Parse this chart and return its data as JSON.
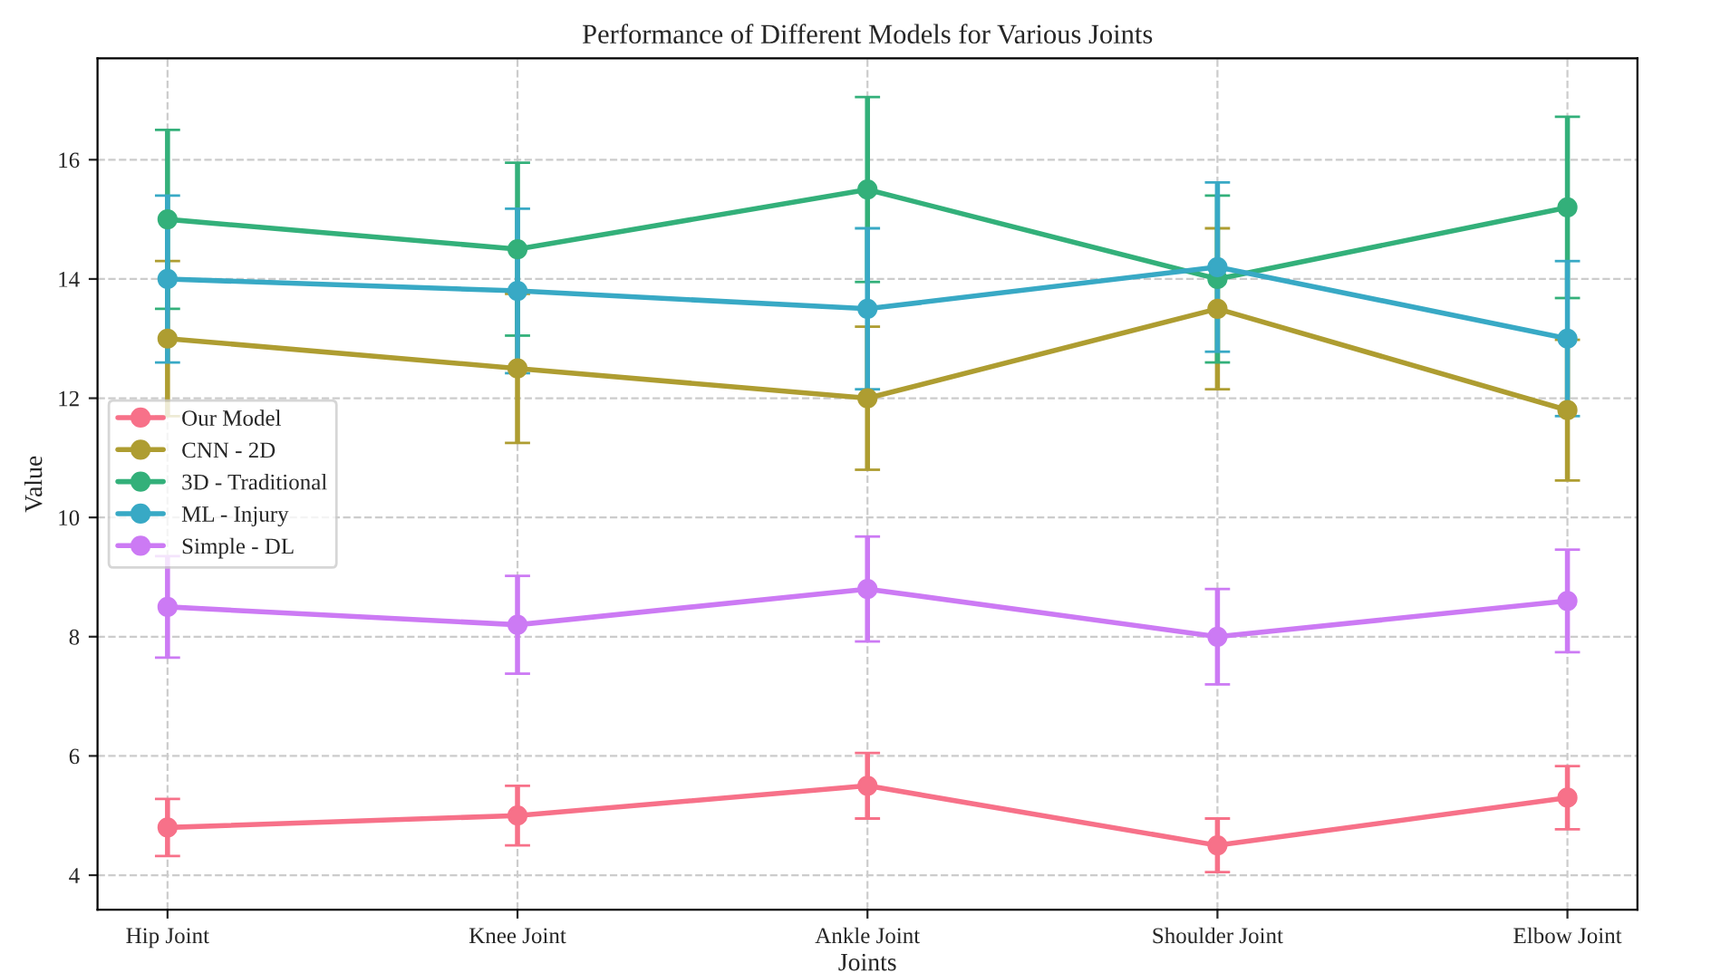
{
  "chart_data": {
    "type": "line",
    "title": "Performance of Different Models for Various Joints",
    "xlabel": "Joints",
    "ylabel": "Value",
    "categories": [
      "Hip Joint",
      "Knee Joint",
      "Ankle Joint",
      "Shoulder Joint",
      "Elbow Joint"
    ],
    "series": [
      {
        "name": "Our Model",
        "color": "#f77189",
        "values": [
          4.8,
          5.0,
          5.5,
          4.5,
          5.3
        ],
        "errors": [
          0.48,
          0.5,
          0.55,
          0.45,
          0.53
        ]
      },
      {
        "name": "CNN - 2D",
        "color": "#ae9d31",
        "values": [
          13.0,
          12.5,
          12.0,
          13.5,
          11.8
        ],
        "errors": [
          1.3,
          1.25,
          1.2,
          1.35,
          1.18
        ]
      },
      {
        "name": "3D - Traditional",
        "color": "#33b07a",
        "values": [
          15.0,
          14.5,
          15.5,
          14.0,
          15.2
        ],
        "errors": [
          1.5,
          1.45,
          1.55,
          1.4,
          1.52
        ]
      },
      {
        "name": "ML - Injury",
        "color": "#38a9c5",
        "values": [
          14.0,
          13.8,
          13.5,
          14.2,
          13.0
        ],
        "errors": [
          1.4,
          1.38,
          1.35,
          1.42,
          1.3
        ]
      },
      {
        "name": "Simple - DL",
        "color": "#cc7af4",
        "values": [
          8.5,
          8.2,
          8.8,
          8.0,
          8.6
        ],
        "errors": [
          0.85,
          0.82,
          0.88,
          0.8,
          0.86
        ]
      }
    ],
    "ylim": [
      3.42,
      17.7
    ],
    "yticks": [
      4,
      6,
      8,
      10,
      12,
      14,
      16
    ],
    "grid": true,
    "legend": "left",
    "marker": "circle",
    "line_style": "solid"
  }
}
